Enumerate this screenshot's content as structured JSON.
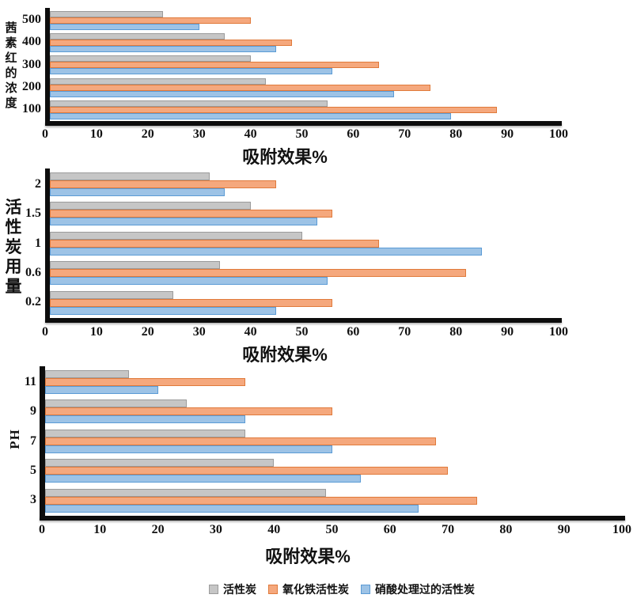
{
  "page": {
    "background": "#ffffff"
  },
  "axis_color": "#0d0d0d",
  "palette": {
    "activated-carbon": {
      "fill": "#c6c6c6",
      "border": "#9b9b9b"
    },
    "iron-oxide-activated-carbon": {
      "fill": "#f5a87d",
      "border": "#e07a3b"
    },
    "nitric-acid-treated-activated-carbon": {
      "fill": "#9dc3e6",
      "border": "#5b9bd5"
    }
  },
  "legend": {
    "items": [
      {
        "key": "activated-carbon",
        "label": "活性炭"
      },
      {
        "key": "iron-oxide-activated-carbon",
        "label": "氧化铁活性炭"
      },
      {
        "key": "nitric-acid-treated-activated-carbon",
        "label": "硝酸处理过的活性炭"
      }
    ]
  },
  "chart_data": [
    {
      "type": "bar",
      "orientation": "horizontal",
      "title": "",
      "xlabel": "吸附效果%",
      "ylabel": "茜素红的浓度",
      "categories": [
        "500",
        "400",
        "300",
        "200",
        "100"
      ],
      "series": [
        {
          "key": "activated-carbon",
          "name": "活性炭",
          "values": [
            23,
            35,
            40,
            43,
            55
          ]
        },
        {
          "key": "iron-oxide-activated-carbon",
          "name": "氧化铁活性炭",
          "values": [
            40,
            48,
            65,
            75,
            88
          ]
        },
        {
          "key": "nitric-acid-treated-activated-carbon",
          "name": "硝酸处理过的活性炭",
          "values": [
            30,
            45,
            56,
            68,
            79
          ]
        }
      ],
      "xlim": [
        0,
        100
      ],
      "xticks": [
        0,
        10,
        20,
        30,
        40,
        50,
        60,
        70,
        80,
        90,
        100
      ],
      "grid": false,
      "legend_position": "shared-bottom"
    },
    {
      "type": "bar",
      "orientation": "horizontal",
      "title": "",
      "xlabel": "吸附效果%",
      "ylabel": "活性炭用量",
      "categories": [
        "2",
        "1.5",
        "1",
        "0.6",
        "0.2"
      ],
      "series": [
        {
          "key": "activated-carbon",
          "name": "活性炭",
          "values": [
            32,
            40,
            50,
            34,
            25
          ]
        },
        {
          "key": "iron-oxide-activated-carbon",
          "name": "氧化铁活性炭",
          "values": [
            45,
            56,
            65,
            82,
            56
          ]
        },
        {
          "key": "nitric-acid-treated-activated-carbon",
          "name": "硝酸处理过的活性炭",
          "values": [
            35,
            53,
            85,
            55,
            45
          ]
        }
      ],
      "xlim": [
        0,
        100
      ],
      "xticks": [
        0,
        10,
        20,
        30,
        40,
        50,
        60,
        70,
        80,
        90,
        100
      ],
      "grid": false,
      "legend_position": "shared-bottom"
    },
    {
      "type": "bar",
      "orientation": "horizontal",
      "title": "",
      "xlabel": "吸附效果%",
      "ylabel": "PH",
      "categories": [
        "11",
        "9",
        "7",
        "5",
        "3"
      ],
      "series": [
        {
          "key": "activated-carbon",
          "name": "活性炭",
          "values": [
            15,
            25,
            35,
            40,
            49
          ]
        },
        {
          "key": "iron-oxide-activated-carbon",
          "name": "氧化铁活性炭",
          "values": [
            35,
            50,
            68,
            70,
            75
          ]
        },
        {
          "key": "nitric-acid-treated-activated-carbon",
          "name": "硝酸处理过的活性炭",
          "values": [
            20,
            35,
            50,
            55,
            65
          ]
        }
      ],
      "xlim": [
        0,
        100
      ],
      "xticks": [
        0,
        10,
        20,
        30,
        40,
        50,
        60,
        70,
        80,
        90,
        100
      ],
      "grid": false,
      "legend_position": "shared-bottom"
    }
  ]
}
